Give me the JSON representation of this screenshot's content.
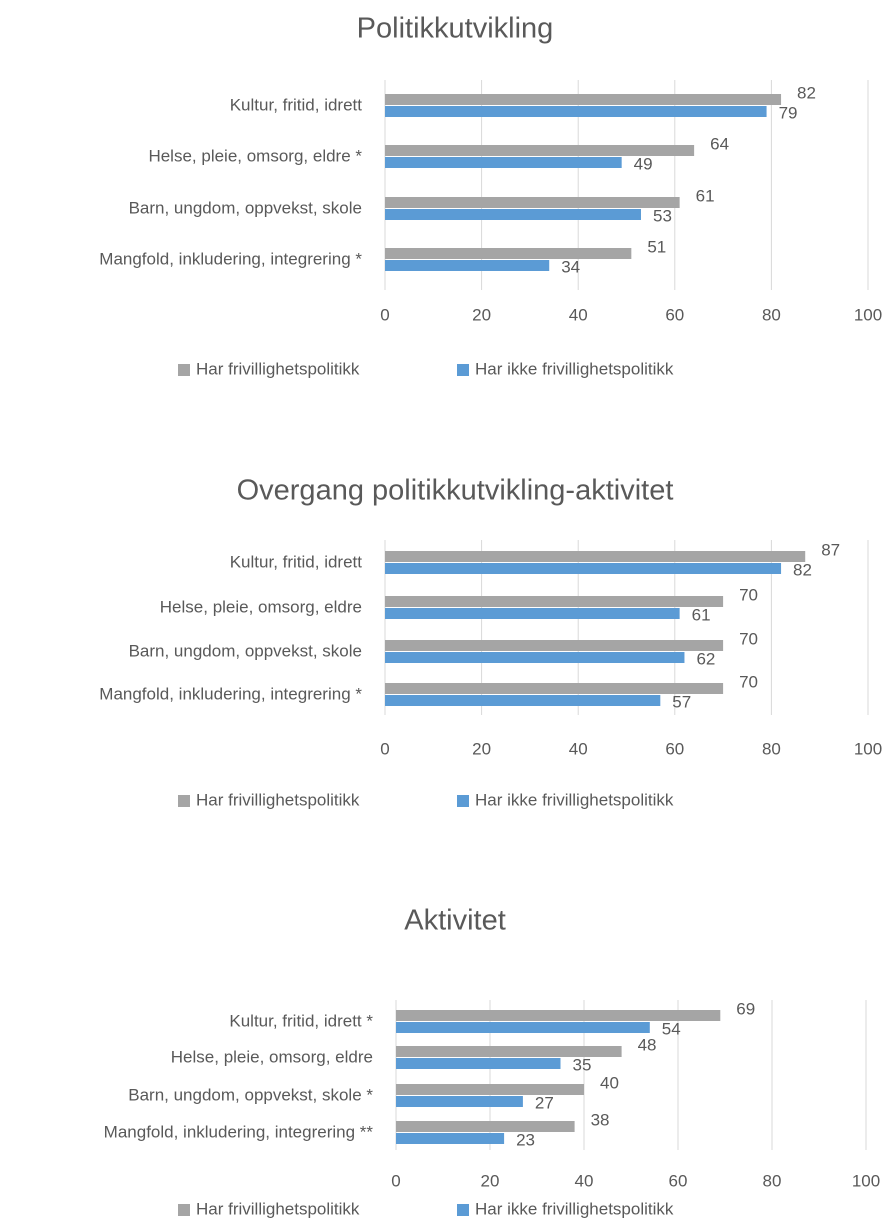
{
  "chart_data": [
    {
      "type": "bar",
      "orientation": "horizontal",
      "title": "Politikkutvikling",
      "categories": [
        "Kultur, fritid, idrett",
        "Helse, pleie, omsorg, eldre *",
        "Barn, ungdom, oppvekst, skole",
        "Mangfold, inkludering, integrering *"
      ],
      "series": [
        {
          "name": "Har frivillighetspolitikk",
          "color": "#a5a5a5",
          "values": [
            82,
            64,
            61,
            51
          ]
        },
        {
          "name": "Har ikke frivillighetspolitikk",
          "color": "#5b9bd5",
          "values": [
            79,
            49,
            53,
            34
          ]
        }
      ],
      "xlim": [
        0,
        100
      ],
      "xticks": [
        0,
        20,
        40,
        60,
        80,
        100
      ],
      "grid": true,
      "legend": "bottom"
    },
    {
      "type": "bar",
      "orientation": "horizontal",
      "title": "Overgang politikkutvikling-aktivitet",
      "categories": [
        "Kultur, fritid, idrett",
        "Helse, pleie, omsorg, eldre",
        "Barn, ungdom, oppvekst, skole",
        "Mangfold, inkludering, integrering *"
      ],
      "series": [
        {
          "name": "Har frivillighetspolitikk",
          "color": "#a5a5a5",
          "values": [
            87,
            70,
            70,
            70
          ]
        },
        {
          "name": "Har ikke frivillighetspolitikk",
          "color": "#5b9bd5",
          "values": [
            82,
            61,
            62,
            57
          ]
        }
      ],
      "xlim": [
        0,
        100
      ],
      "xticks": [
        0,
        20,
        40,
        60,
        80,
        100
      ],
      "grid": true,
      "legend": "bottom"
    },
    {
      "type": "bar",
      "orientation": "horizontal",
      "title": "Aktivitet",
      "categories": [
        "Kultur, fritid, idrett *",
        "Helse, pleie, omsorg, eldre",
        "Barn, ungdom, oppvekst, skole *",
        "Mangfold, inkludering, integrering **"
      ],
      "series": [
        {
          "name": "Har frivillighetspolitikk",
          "color": "#a5a5a5",
          "values": [
            69,
            48,
            40,
            38
          ]
        },
        {
          "name": "Har ikke frivillighetspolitikk",
          "color": "#5b9bd5",
          "values": [
            54,
            35,
            27,
            23
          ]
        }
      ],
      "xlim": [
        0,
        100
      ],
      "xticks": [
        0,
        20,
        40,
        60,
        80,
        100
      ],
      "grid": true,
      "legend": "bottom"
    }
  ]
}
